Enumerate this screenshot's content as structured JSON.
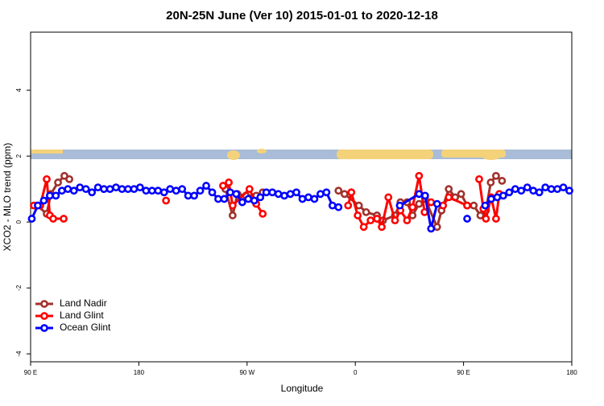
{
  "chart_data": {
    "type": "line",
    "title": "20N-25N June (Ver 10)   2015-01-01 to 2020-12-18",
    "xlabel": "Longitude",
    "ylabel": "XCO2 - MLO trend (ppm)",
    "xlim": [
      90,
      540
    ],
    "xticks": [
      {
        "value": 90,
        "label": "90 E"
      },
      180,
      {
        "value": 270,
        "label": "90 W"
      },
      {
        "value": 360,
        "label": "0"
      },
      {
        "value": 450,
        "label": "90 E"
      },
      {
        "value": 540,
        "label": "180"
      }
    ],
    "ylim": [
      -4.24,
      5.76
    ],
    "yticks": [
      -4,
      -2,
      0,
      2,
      4
    ],
    "legend": "bottomleft",
    "series": [
      {
        "name": "Land Nadir",
        "color": "#a0322d",
        "x": [
          95.4,
          103.4,
          106.8,
          112.8,
          118.1,
          122.2,
          180,
          252,
          258,
          262,
          269,
          277.6,
          283,
          320,
          346,
          351,
          363,
          369,
          378,
          383,
          393,
          397.5,
          403,
          407.6,
          413,
          418,
          428,
          431.7,
          437.7,
          443,
          448,
          453,
          458.5,
          464,
          468.6,
          472.6,
          477,
          482
        ],
        "values": [
          0.5,
          0.25,
          0.85,
          1.2,
          1.4,
          1.3,
          null,
          1.0,
          0.2,
          0.85,
          0.8,
          0.8,
          0.9,
          null,
          0.95,
          0.85,
          0.5,
          0.3,
          0.2,
          0.05,
          0.2,
          0.6,
          0.6,
          0.2,
          0.55,
          0.7,
          -0.15,
          0.35,
          1.0,
          0.75,
          0.85,
          0.5,
          0.5,
          0.2,
          0.35,
          1.2,
          1.4,
          1.25
        ]
      },
      {
        "name": "Land Glint",
        "color": "#ff0000",
        "x": [
          92.7,
          98,
          103.4,
          106,
          108.8,
          117.5,
          160,
          202.6,
          230,
          250,
          254.8,
          258,
          272,
          277.6,
          283,
          320,
          354,
          356.7,
          362,
          367,
          372.7,
          378,
          382,
          387.5,
          393,
          397.5,
          403,
          407.6,
          413,
          417.6,
          423,
          428,
          433,
          437.7,
          453,
          458,
          463,
          466.5,
          468.6,
          473,
          477,
          479.7
        ],
        "values": [
          0.5,
          0.5,
          1.3,
          0.2,
          0.1,
          0.1,
          null,
          0.65,
          null,
          1.1,
          1.2,
          0.5,
          1.0,
          0.55,
          0.25,
          null,
          0.5,
          0.9,
          0.2,
          -0.15,
          0.05,
          0.1,
          -0.15,
          0.75,
          0.05,
          0.35,
          0.05,
          0.45,
          1.4,
          0.3,
          0.6,
          null,
          0.5,
          0.75,
          0.5,
          null,
          1.3,
          0.4,
          0.1,
          0.75,
          0.1,
          0.85
        ]
      },
      {
        "name": "Ocean Glint",
        "color": "#0000ff",
        "x": [
          91,
          96,
          101,
          106,
          111,
          116,
          121,
          126,
          131,
          136,
          141,
          146,
          151,
          156,
          161,
          166,
          171,
          176,
          181,
          186,
          191,
          196,
          201,
          206,
          211,
          216,
          221,
          226,
          231,
          236,
          241,
          246,
          251,
          256,
          261,
          266,
          271,
          276,
          281,
          286,
          291,
          296,
          301,
          306,
          311,
          316,
          321,
          326,
          331,
          336,
          341,
          346,
          370,
          397,
          413,
          418,
          423,
          428,
          440,
          453,
          460,
          468,
          473,
          478,
          483,
          488,
          493,
          498,
          503,
          508,
          513,
          518,
          523,
          528,
          533,
          538
        ],
        "values": [
          0.1,
          0.5,
          0.65,
          0.8,
          0.8,
          0.95,
          1.0,
          0.95,
          1.05,
          1.0,
          0.9,
          1.05,
          1.0,
          1.0,
          1.05,
          1.0,
          1.0,
          1.0,
          1.05,
          0.95,
          0.95,
          0.95,
          0.9,
          1.0,
          0.95,
          1.0,
          0.8,
          0.8,
          0.95,
          1.1,
          0.9,
          0.7,
          0.7,
          0.9,
          0.85,
          0.6,
          0.7,
          0.65,
          0.75,
          0.9,
          0.9,
          0.85,
          0.8,
          0.85,
          0.9,
          0.7,
          0.75,
          0.7,
          0.85,
          0.9,
          0.5,
          0.45,
          null,
          0.5,
          0.85,
          0.8,
          -0.2,
          0.55,
          null,
          0.1,
          null,
          0.5,
          0.7,
          0.75,
          0.8,
          0.9,
          1.0,
          0.95,
          1.05,
          0.95,
          0.9,
          1.05,
          1.0,
          1.0,
          1.05,
          0.95
        ]
      }
    ]
  }
}
